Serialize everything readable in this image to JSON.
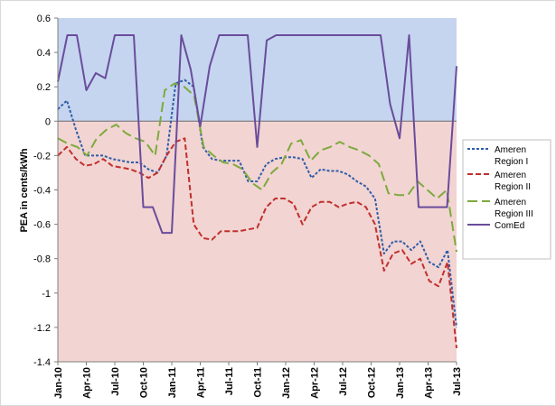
{
  "chart_data": {
    "type": "line",
    "ylabel": "PEA in cents/kWh",
    "ylim": [
      -1.4,
      0.6
    ],
    "yticks": [
      "0.6",
      "0.4",
      "0.2",
      "0",
      "-0.2",
      "-0.4",
      "-0.6",
      "-0.8",
      "-1",
      "-1.2",
      "-1.4"
    ],
    "xticks": [
      "Jan-10",
      "Apr-10",
      "Jul-10",
      "Oct-10",
      "Jan-11",
      "Apr-11",
      "Jul-11",
      "Oct-11",
      "Jan-12",
      "Apr-12",
      "Jul-12",
      "Oct-12",
      "Jan-13",
      "Apr-13",
      "Jul-13"
    ],
    "x_start": "Jan-10",
    "x_end": "Jul-13",
    "background_bands": [
      {
        "from": 0,
        "to": 0.6,
        "color": "#c5d5ef"
      },
      {
        "from": -1.4,
        "to": 0,
        "color": "#f2d4d2"
      }
    ],
    "legend_position": "right",
    "series": [
      {
        "name": "Ameren Region I",
        "color": "#2e5da8",
        "dash": "dotted",
        "values": [
          0.07,
          0.12,
          -0.05,
          -0.2,
          -0.2,
          -0.2,
          -0.22,
          -0.23,
          -0.24,
          -0.24,
          -0.28,
          -0.3,
          -0.2,
          0.22,
          0.24,
          0.2,
          -0.15,
          -0.22,
          -0.23,
          -0.23,
          -0.23,
          -0.35,
          -0.35,
          -0.25,
          -0.22,
          -0.21,
          -0.21,
          -0.22,
          -0.33,
          -0.28,
          -0.29,
          -0.29,
          -0.31,
          -0.35,
          -0.38,
          -0.45,
          -0.77,
          -0.7,
          -0.7,
          -0.75,
          -0.7,
          -0.82,
          -0.85,
          -0.75,
          -1.2
        ]
      },
      {
        "name": "Ameren Region II",
        "color": "#c0302d",
        "dash": "dashed",
        "values": [
          -0.2,
          -0.15,
          -0.22,
          -0.26,
          -0.25,
          -0.22,
          -0.26,
          -0.27,
          -0.28,
          -0.3,
          -0.33,
          -0.3,
          -0.2,
          -0.12,
          -0.1,
          -0.6,
          -0.68,
          -0.69,
          -0.64,
          -0.64,
          -0.64,
          -0.63,
          -0.62,
          -0.5,
          -0.45,
          -0.45,
          -0.48,
          -0.6,
          -0.5,
          -0.47,
          -0.47,
          -0.5,
          -0.48,
          -0.47,
          -0.5,
          -0.6,
          -0.87,
          -0.77,
          -0.75,
          -0.83,
          -0.8,
          -0.93,
          -0.96,
          -0.82,
          -1.32
        ]
      },
      {
        "name": "Ameren Region III",
        "color": "#7daa3c",
        "dash": "longdash",
        "values": [
          -0.1,
          -0.13,
          -0.15,
          -0.2,
          -0.1,
          -0.05,
          -0.02,
          -0.07,
          -0.1,
          -0.12,
          -0.2,
          0.18,
          0.22,
          0.2,
          0.15,
          -0.15,
          -0.2,
          -0.24,
          -0.25,
          -0.28,
          -0.36,
          -0.4,
          -0.3,
          -0.25,
          -0.13,
          -0.11,
          -0.23,
          -0.17,
          -0.15,
          -0.12,
          -0.15,
          -0.17,
          -0.2,
          -0.25,
          -0.42,
          -0.43,
          -0.43,
          -0.35,
          -0.4,
          -0.45,
          -0.4,
          -0.76
        ]
      },
      {
        "name": "ComEd",
        "color": "#6a4c9c",
        "dash": "solid",
        "values": [
          0.23,
          0.5,
          0.5,
          0.18,
          0.28,
          0.25,
          0.5,
          0.5,
          0.5,
          -0.5,
          -0.5,
          -0.65,
          -0.65,
          0.5,
          0.3,
          -0.03,
          0.32,
          0.5,
          0.5,
          0.5,
          0.5,
          -0.15,
          0.47,
          0.5,
          0.5,
          0.5,
          0.5,
          0.5,
          0.5,
          0.5,
          0.5,
          0.5,
          0.5,
          0.5,
          0.5,
          0.1,
          -0.1,
          0.5,
          -0.5,
          -0.5,
          -0.5,
          -0.5,
          0.32
        ]
      }
    ]
  }
}
